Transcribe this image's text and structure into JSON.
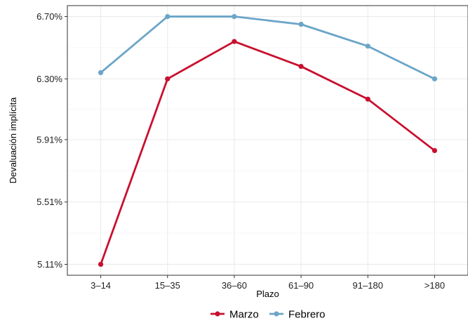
{
  "chart_data": {
    "type": "line",
    "title": "",
    "xlabel": "Plazo",
    "ylabel": "Devaluación implícita",
    "categories": [
      "3–14",
      "15–35",
      "36–60",
      "61–90",
      "91–180",
      ">180"
    ],
    "y_ticks": [
      5.11,
      5.51,
      5.91,
      6.3,
      6.7
    ],
    "y_tick_labels": [
      "5.11%",
      "5.51%",
      "5.91%",
      "6.30%",
      "6.70%"
    ],
    "ylim": [
      5.04,
      6.77
    ],
    "grid": true,
    "legend_position": "bottom",
    "series": [
      {
        "name": "Marzo",
        "color": "#c8102e",
        "values": [
          5.11,
          6.3,
          6.54,
          6.38,
          6.17,
          5.84
        ]
      },
      {
        "name": "Febrero",
        "color": "#6aa5c8",
        "values": [
          6.34,
          6.7,
          6.7,
          6.65,
          6.51,
          6.3
        ]
      }
    ]
  }
}
